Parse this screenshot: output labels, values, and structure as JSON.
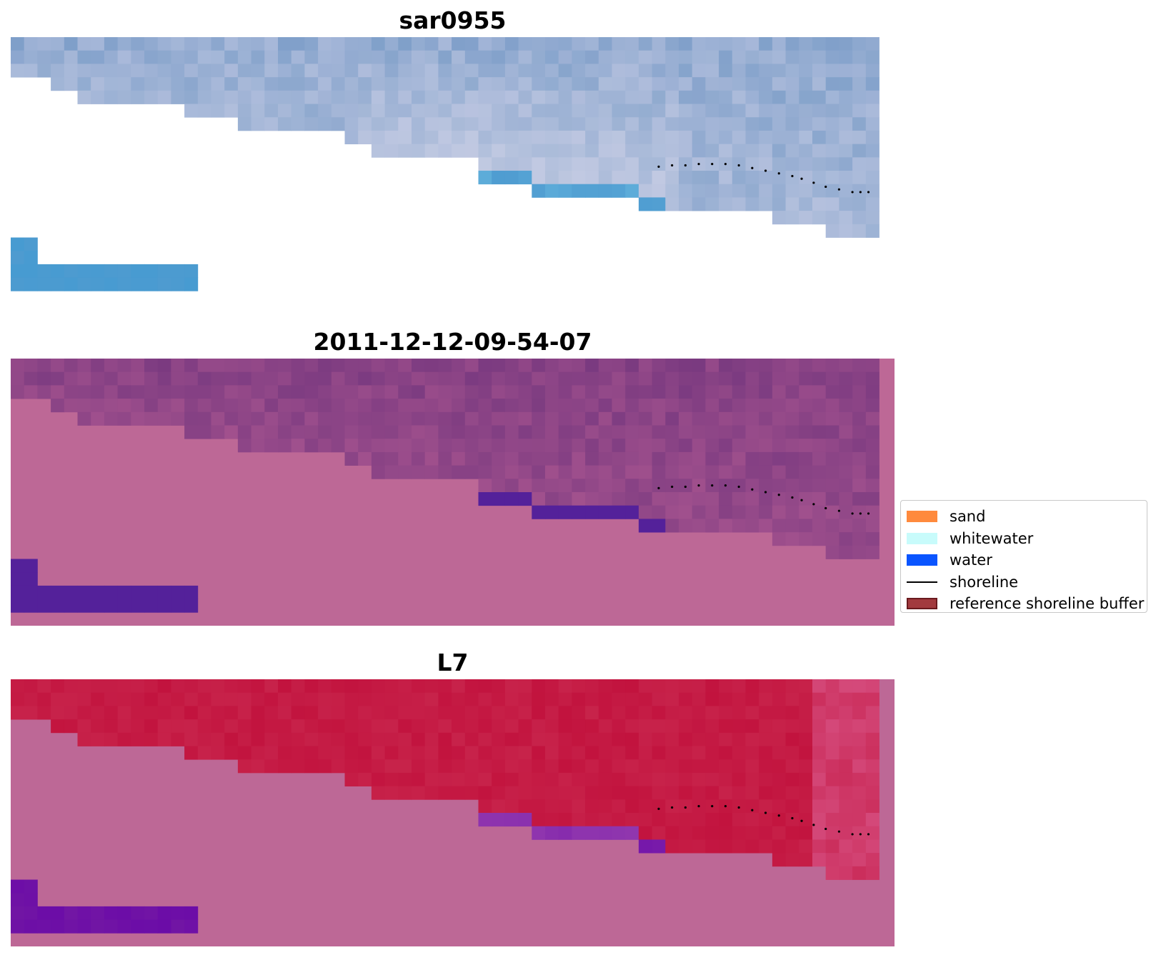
{
  "panels": [
    {
      "id": "rgb",
      "title": "sar0955",
      "style": "rgb"
    },
    {
      "id": "classified",
      "title": "2011-12-12-09-54-07",
      "style": "classified"
    },
    {
      "id": "index",
      "title": "L7",
      "style": "index"
    }
  ],
  "colors": {
    "background_pink": "#bd6896",
    "classified_water": "#54219a",
    "index_water": "#6a0aa8",
    "index_land": "#c2133e",
    "rgb_water": "#4e9bd0",
    "shoreline_dot": "#000000"
  },
  "legend": {
    "items": [
      {
        "label": "sand",
        "type": "patch",
        "color": "#ff8a3d",
        "border": "none"
      },
      {
        "label": "whitewater",
        "type": "patch",
        "color": "#c8fbfb",
        "border": "none"
      },
      {
        "label": "water",
        "type": "patch",
        "color": "#0a55ff",
        "border": "none"
      },
      {
        "label": "shoreline",
        "type": "line",
        "color": "#000000",
        "border": "none"
      },
      {
        "label": "reference shoreline buffer",
        "type": "patch",
        "color": "#a23a3e",
        "border": "#6a1a1e"
      }
    ]
  }
}
